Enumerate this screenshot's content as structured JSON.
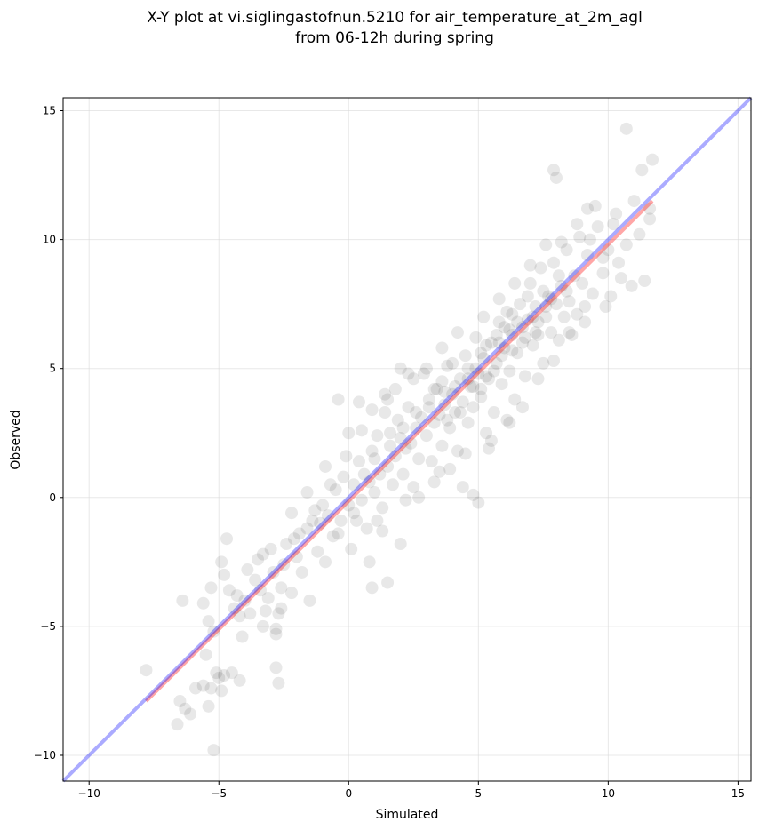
{
  "chart_data": {
    "type": "scatter",
    "title": [
      "X-Y plot at vi.siglingastofnun.5210 for air_temperature_at_2m_agl",
      "from 06-12h during spring"
    ],
    "xlabel": "Simulated",
    "ylabel": "Observed",
    "xlim": [
      -11,
      15.5
    ],
    "ylim": [
      -11,
      15.5
    ],
    "xticks": [
      -10,
      -5,
      0,
      5,
      10,
      15
    ],
    "yticks": [
      -10,
      -5,
      0,
      5,
      10,
      15
    ],
    "xtick_labels": [
      "−10",
      "−5",
      "0",
      "5",
      "10",
      "15"
    ],
    "ytick_labels": [
      "−10",
      "−5",
      "0",
      "5",
      "10",
      "15"
    ],
    "grid": true,
    "point_color": "#000000",
    "fit_line": {
      "color": "#ff0000",
      "x": [
        -7.8,
        11.7
      ],
      "y": [
        -7.9,
        11.5
      ]
    },
    "identity_line": {
      "color": "#0000ff",
      "x": [
        -11,
        15.5
      ],
      "y": [
        -11,
        15.5
      ]
    },
    "points": [
      [
        -7.8,
        -6.7
      ],
      [
        -6.6,
        -8.8
      ],
      [
        -6.5,
        -7.9
      ],
      [
        -6.3,
        -8.2
      ],
      [
        -6.1,
        -8.4
      ],
      [
        -5.9,
        -7.4
      ],
      [
        -5.6,
        -7.3
      ],
      [
        -5.5,
        -6.1
      ],
      [
        -5.4,
        -8.1
      ],
      [
        -5.3,
        -7.4
      ],
      [
        -5.2,
        -9.8
      ],
      [
        -5.1,
        -6.8
      ],
      [
        -5.0,
        -7.0
      ],
      [
        -4.9,
        -7.5
      ],
      [
        -4.8,
        -6.9
      ],
      [
        -4.5,
        -6.8
      ],
      [
        -4.2,
        -7.1
      ],
      [
        -6.4,
        -4.0
      ],
      [
        -5.6,
        -4.1
      ],
      [
        -5.4,
        -4.8
      ],
      [
        -5.2,
        -5.2
      ],
      [
        -4.9,
        -2.5
      ],
      [
        -4.7,
        -1.6
      ],
      [
        -4.8,
        -3.0
      ],
      [
        -4.6,
        -3.6
      ],
      [
        -4.4,
        -4.3
      ],
      [
        -4.3,
        -3.8
      ],
      [
        -4.1,
        -5.4
      ],
      [
        -4.0,
        -4.0
      ],
      [
        -3.8,
        -4.5
      ],
      [
        -3.6,
        -3.2
      ],
      [
        -3.5,
        -2.4
      ],
      [
        -3.4,
        -3.6
      ],
      [
        -3.2,
        -4.4
      ],
      [
        -3.0,
        -2.0
      ],
      [
        -2.9,
        -2.9
      ],
      [
        -2.8,
        -5.3
      ],
      [
        -2.7,
        -4.5
      ],
      [
        -2.6,
        -3.5
      ],
      [
        -2.5,
        -2.6
      ],
      [
        -2.4,
        -1.8
      ],
      [
        -2.2,
        -3.7
      ],
      [
        -2.1,
        -1.6
      ],
      [
        -2.0,
        -2.3
      ],
      [
        -1.8,
        -2.9
      ],
      [
        -1.6,
        -1.2
      ],
      [
        -1.5,
        -4.0
      ],
      [
        -1.4,
        -0.9
      ],
      [
        -1.2,
        -2.1
      ],
      [
        -1.1,
        -1.0
      ],
      [
        -1.0,
        -0.3
      ],
      [
        -0.9,
        -2.5
      ],
      [
        -0.8,
        -0.7
      ],
      [
        -0.6,
        -1.5
      ],
      [
        -0.5,
        0.3
      ],
      [
        -0.4,
        -1.4
      ],
      [
        -0.3,
        -0.9
      ],
      [
        -0.1,
        1.6
      ],
      [
        0.0,
        -0.3
      ],
      [
        0.1,
        -2.0
      ],
      [
        0.2,
        0.5
      ],
      [
        0.3,
        -0.9
      ],
      [
        0.4,
        1.4
      ],
      [
        0.5,
        -0.1
      ],
      [
        0.6,
        0.9
      ],
      [
        0.7,
        -1.2
      ],
      [
        0.8,
        0.6
      ],
      [
        0.9,
        1.8
      ],
      [
        1.0,
        0.2
      ],
      [
        1.1,
        2.4
      ],
      [
        1.2,
        0.9
      ],
      [
        1.3,
        -0.4
      ],
      [
        1.4,
        3.3
      ],
      [
        1.5,
        1.2
      ],
      [
        1.6,
        2.0
      ],
      [
        1.7,
        0.5
      ],
      [
        1.8,
        1.6
      ],
      [
        1.9,
        3.0
      ],
      [
        2.0,
        2.3
      ],
      [
        2.1,
        0.9
      ],
      [
        2.2,
        1.9
      ],
      [
        2.3,
        3.5
      ],
      [
        2.4,
        2.1
      ],
      [
        2.5,
        0.4
      ],
      [
        2.6,
        2.7
      ],
      [
        2.7,
        1.5
      ],
      [
        2.8,
        3.1
      ],
      [
        2.9,
        4.8
      ],
      [
        3.0,
        2.4
      ],
      [
        3.1,
        3.8
      ],
      [
        3.2,
        1.4
      ],
      [
        3.3,
        2.9
      ],
      [
        3.4,
        4.2
      ],
      [
        3.5,
        3.2
      ],
      [
        3.6,
        2.0
      ],
      [
        3.7,
        3.6
      ],
      [
        3.8,
        5.1
      ],
      [
        3.9,
        2.7
      ],
      [
        4.0,
        4.0
      ],
      [
        4.1,
        3.3
      ],
      [
        4.2,
        1.8
      ],
      [
        4.3,
        4.6
      ],
      [
        4.4,
        3.7
      ],
      [
        4.5,
        5.5
      ],
      [
        4.6,
        2.9
      ],
      [
        4.7,
        4.3
      ],
      [
        4.8,
        3.5
      ],
      [
        4.9,
        6.2
      ],
      [
        5.0,
        4.8
      ],
      [
        5.1,
        3.9
      ],
      [
        5.2,
        5.4
      ],
      [
        5.3,
        2.5
      ],
      [
        5.4,
        4.6
      ],
      [
        5.5,
        6.0
      ],
      [
        5.6,
        3.3
      ],
      [
        5.7,
        5.2
      ],
      [
        5.8,
        6.8
      ],
      [
        5.9,
        4.4
      ],
      [
        6.0,
        5.8
      ],
      [
        6.1,
        7.2
      ],
      [
        6.2,
        4.9
      ],
      [
        6.3,
        6.3
      ],
      [
        6.4,
        3.8
      ],
      [
        6.5,
        5.6
      ],
      [
        6.6,
        7.5
      ],
      [
        6.7,
        6.0
      ],
      [
        6.8,
        4.7
      ],
      [
        6.9,
        6.9
      ],
      [
        7.0,
        8.3
      ],
      [
        7.1,
        5.9
      ],
      [
        7.2,
        7.4
      ],
      [
        7.3,
        6.3
      ],
      [
        7.4,
        8.9
      ],
      [
        7.5,
        5.2
      ],
      [
        7.6,
        7.0
      ],
      [
        7.7,
        7.8
      ],
      [
        7.8,
        6.4
      ],
      [
        7.9,
        9.1
      ],
      [
        8.0,
        7.5
      ],
      [
        8.1,
        6.1
      ],
      [
        8.2,
        8.2
      ],
      [
        8.3,
        7.0
      ],
      [
        8.4,
        9.6
      ],
      [
        8.5,
        7.6
      ],
      [
        8.6,
        6.3
      ],
      [
        8.7,
        8.6
      ],
      [
        8.8,
        7.1
      ],
      [
        8.9,
        10.1
      ],
      [
        9.0,
        8.3
      ],
      [
        9.1,
        6.8
      ],
      [
        9.2,
        9.4
      ],
      [
        9.4,
        7.9
      ],
      [
        9.6,
        10.5
      ],
      [
        9.8,
        8.7
      ],
      [
        10.0,
        9.6
      ],
      [
        10.1,
        7.8
      ],
      [
        10.3,
        11.0
      ],
      [
        10.5,
        8.5
      ],
      [
        10.7,
        9.8
      ],
      [
        10.9,
        8.2
      ],
      [
        11.0,
        11.5
      ],
      [
        11.2,
        10.2
      ],
      [
        11.4,
        8.4
      ],
      [
        11.6,
        10.8
      ],
      [
        11.7,
        13.1
      ],
      [
        10.7,
        14.3
      ],
      [
        11.3,
        12.7
      ],
      [
        7.9,
        12.7
      ],
      [
        8.0,
        12.4
      ],
      [
        9.2,
        11.2
      ],
      [
        9.3,
        10.0
      ],
      [
        9.8,
        9.3
      ],
      [
        10.2,
        10.6
      ],
      [
        11.6,
        11.2
      ],
      [
        -5.3,
        -3.5
      ],
      [
        -4.2,
        -4.6
      ],
      [
        -3.9,
        -2.8
      ],
      [
        -3.3,
        -2.2
      ],
      [
        -3.1,
        -3.9
      ],
      [
        -2.6,
        -4.3
      ],
      [
        -1.9,
        -1.4
      ],
      [
        -1.3,
        -0.5
      ],
      [
        -0.7,
        0.5
      ],
      [
        -0.2,
        0.8
      ],
      [
        0.2,
        -0.6
      ],
      [
        0.5,
        2.6
      ],
      [
        0.9,
        3.4
      ],
      [
        1.1,
        -0.9
      ],
      [
        1.5,
        3.8
      ],
      [
        1.8,
        4.2
      ],
      [
        2.2,
        -0.1
      ],
      [
        2.5,
        4.6
      ],
      [
        2.7,
        0.0
      ],
      [
        3.0,
        5.0
      ],
      [
        3.3,
        0.6
      ],
      [
        3.6,
        5.8
      ],
      [
        3.9,
        1.1
      ],
      [
        4.2,
        6.4
      ],
      [
        4.5,
        1.7
      ],
      [
        4.8,
        0.1
      ],
      [
        5.0,
        -0.2
      ],
      [
        5.2,
        7.0
      ],
      [
        5.5,
        2.2
      ],
      [
        5.8,
        7.7
      ],
      [
        6.1,
        3.0
      ],
      [
        6.4,
        8.3
      ],
      [
        6.7,
        3.5
      ],
      [
        7.0,
        9.0
      ],
      [
        7.3,
        4.6
      ],
      [
        7.6,
        9.8
      ],
      [
        7.9,
        5.3
      ],
      [
        8.2,
        9.9
      ],
      [
        8.5,
        6.4
      ],
      [
        8.8,
        10.6
      ],
      [
        9.1,
        7.4
      ],
      [
        9.5,
        11.3
      ],
      [
        9.9,
        7.4
      ],
      [
        10.4,
        9.1
      ],
      [
        0.8,
        -2.5
      ],
      [
        1.3,
        -1.3
      ],
      [
        2.0,
        -1.8
      ],
      [
        2.3,
        4.8
      ],
      [
        3.5,
        1.0
      ],
      [
        4.4,
        0.4
      ],
      [
        5.4,
        1.9
      ],
      [
        6.2,
        2.9
      ],
      [
        -2.2,
        -0.6
      ],
      [
        -1.6,
        0.2
      ],
      [
        -0.9,
        1.2
      ],
      [
        0.0,
        2.5
      ],
      [
        -0.4,
        3.8
      ],
      [
        0.4,
        3.7
      ],
      [
        1.4,
        4.0
      ],
      [
        2.0,
        5.0
      ],
      [
        -2.7,
        -7.2
      ],
      [
        -2.8,
        -6.6
      ],
      [
        -2.8,
        -5.1
      ],
      [
        -3.3,
        -5.0
      ],
      [
        1.5,
        -3.3
      ],
      [
        0.9,
        -3.5
      ],
      [
        3.3,
        4.2
      ],
      [
        3.6,
        4.5
      ],
      [
        3.8,
        3.0
      ],
      [
        4.0,
        5.2
      ],
      [
        4.3,
        3.3
      ],
      [
        4.6,
        4.6
      ],
      [
        4.9,
        5.0
      ],
      [
        5.1,
        4.2
      ],
      [
        5.3,
        5.9
      ],
      [
        5.6,
        4.9
      ],
      [
        5.9,
        5.5
      ],
      [
        6.0,
        6.6
      ],
      [
        6.3,
        5.7
      ],
      [
        6.5,
        6.8
      ],
      [
        6.8,
        6.2
      ],
      [
        7.1,
        7.0
      ],
      [
        7.3,
        6.8
      ],
      [
        7.6,
        7.4
      ],
      [
        6.9,
        7.8
      ],
      [
        6.2,
        6.5
      ],
      [
        5.7,
        6.3
      ],
      [
        5.1,
        5.6
      ],
      [
        4.6,
        5.0
      ],
      [
        4.1,
        4.3
      ],
      [
        3.7,
        4.1
      ],
      [
        3.1,
        3.5
      ],
      [
        2.6,
        3.3
      ],
      [
        2.1,
        2.7
      ],
      [
        1.6,
        2.5
      ],
      [
        1.0,
        1.5
      ],
      [
        4.8,
        4.3
      ],
      [
        5.3,
        4.7
      ],
      [
        5.8,
        6.0
      ],
      [
        6.3,
        7.1
      ],
      [
        6.7,
        6.6
      ],
      [
        7.2,
        6.4
      ],
      [
        7.5,
        8.0
      ],
      [
        7.8,
        7.7
      ],
      [
        8.1,
        8.6
      ],
      [
        8.4,
        8.0
      ]
    ]
  }
}
